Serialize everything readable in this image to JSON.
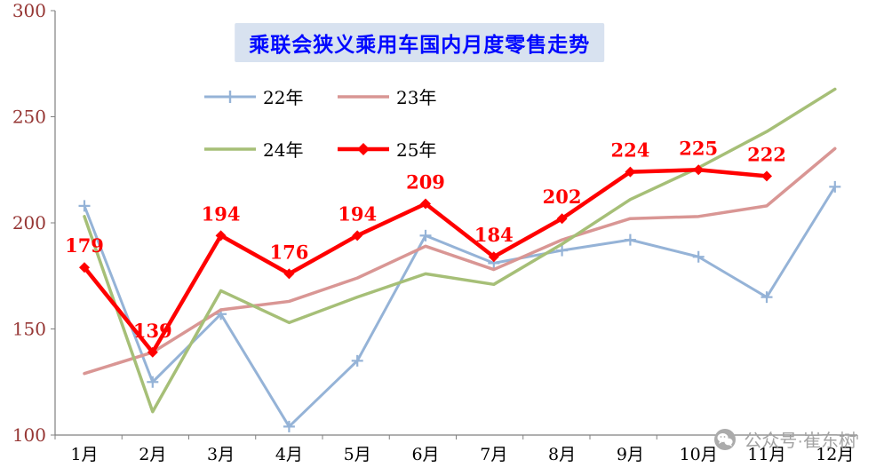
{
  "chart_data": {
    "type": "line",
    "title": "乘联会狭义乘用车国内月度零售走势",
    "categories": [
      "1月",
      "2月",
      "3月",
      "4月",
      "5月",
      "6月",
      "7月",
      "8月",
      "9月",
      "10月",
      "11月",
      "12月"
    ],
    "yticks": [
      300,
      250,
      200,
      150,
      100
    ],
    "ylim": [
      100,
      300
    ],
    "grid": false,
    "legend_position": "top-center",
    "label_color": "#ff0000",
    "axis_color": "#808080",
    "ytick_color": "#963634",
    "xtick_color": "#000000",
    "series": [
      {
        "name": "22年",
        "color": "#95b3d7",
        "marker": "plus",
        "width": 3,
        "values": [
          208,
          125,
          157,
          104,
          135,
          194,
          181,
          187,
          192,
          184,
          165,
          217
        ]
      },
      {
        "name": "23年",
        "color": "#d99694",
        "marker": "none",
        "width": 3.5,
        "values": [
          129,
          139,
          159,
          163,
          174,
          189,
          178,
          192,
          202,
          203,
          208,
          235
        ]
      },
      {
        "name": "24年",
        "color": "#a6bf77",
        "marker": "none",
        "width": 3.5,
        "values": [
          203,
          111,
          168,
          153,
          165,
          176,
          171,
          190,
          211,
          226,
          243,
          263
        ]
      },
      {
        "name": "25年",
        "color": "#ff0000",
        "marker": "diamond",
        "width": 4.5,
        "show_labels": true,
        "values": [
          179,
          139,
          194,
          176,
          194,
          209,
          184,
          202,
          224,
          225,
          222
        ]
      }
    ],
    "watermark": "公众号·崔东树"
  }
}
